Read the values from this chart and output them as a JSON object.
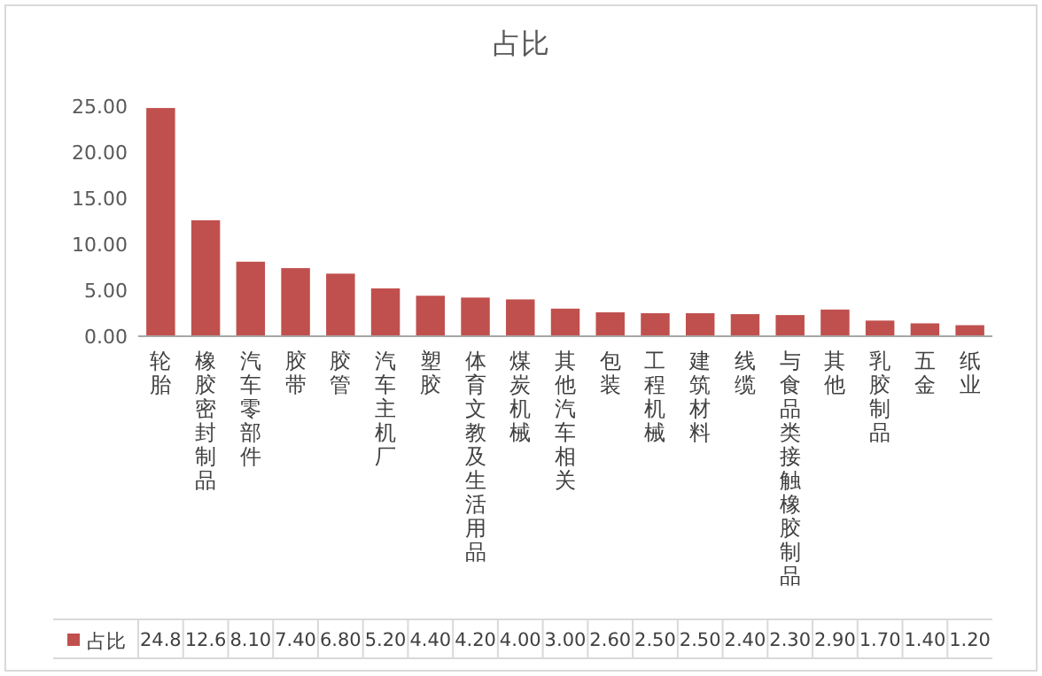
{
  "chart_data": {
    "type": "bar",
    "title": "占比",
    "categories": [
      "轮胎",
      "橡胶密封制品",
      "汽车零部件",
      "胶带",
      "胶管",
      "汽车主机厂",
      "塑胶",
      "体育文教及生活用品",
      "煤炭机械",
      "其他汽车相关",
      "包装",
      "工程机械",
      "建筑材料",
      "线缆",
      "与食品类接触橡胶制品",
      "其他",
      "乳胶制品",
      "五金",
      "纸业"
    ],
    "series": [
      {
        "name": "占比",
        "color": "#c0504d",
        "values": [
          24.8,
          12.6,
          8.1,
          7.4,
          6.8,
          5.2,
          4.4,
          4.2,
          4.0,
          3.0,
          2.6,
          2.5,
          2.5,
          2.4,
          2.3,
          2.9,
          1.7,
          1.4,
          1.2
        ],
        "value_labels": [
          "24.8",
          "12.6",
          "8.10",
          "7.40",
          "6.80",
          "5.20",
          "4.40",
          "4.20",
          "4.00",
          "3.00",
          "2.60",
          "2.50",
          "2.50",
          "2.40",
          "2.30",
          "2.90",
          "1.70",
          "1.40",
          "1.20"
        ]
      }
    ],
    "ylim": [
      0,
      25
    ],
    "yticks": [
      {
        "value": 0,
        "label": "0.00"
      },
      {
        "value": 5,
        "label": "5.00"
      },
      {
        "value": 10,
        "label": "10.00"
      },
      {
        "value": 15,
        "label": "15.00"
      },
      {
        "value": 20,
        "label": "20.00"
      },
      {
        "value": 25,
        "label": "25.00"
      }
    ],
    "legend": "bottom"
  }
}
